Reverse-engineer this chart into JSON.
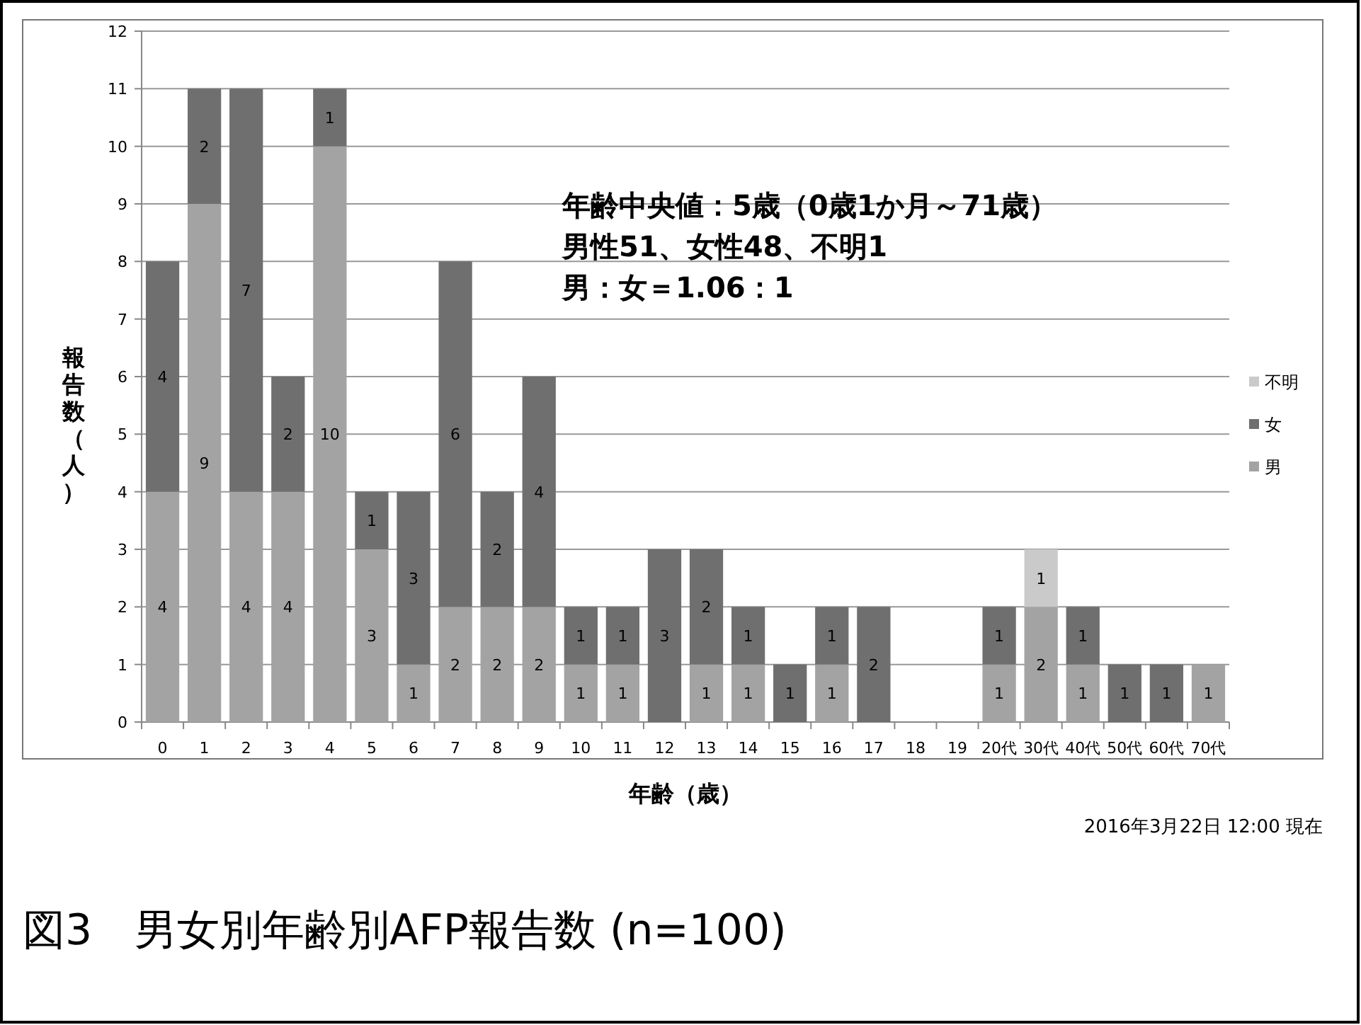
{
  "chart_data": {
    "type": "bar",
    "stacked": true,
    "title": "図3　男女別年齢別AFP報告数 (n=100)",
    "xlabel": "年齢（歳）",
    "ylabel": "報告数（人）",
    "categories": [
      "0",
      "1",
      "2",
      "3",
      "4",
      "5",
      "6",
      "7",
      "8",
      "9",
      "10",
      "11",
      "12",
      "13",
      "14",
      "15",
      "16",
      "17",
      "18",
      "19",
      "20代",
      "30代",
      "40代",
      "50代",
      "60代",
      "70代"
    ],
    "series": [
      {
        "name": "男",
        "color": "#a3a3a3",
        "values": [
          4,
          9,
          4,
          4,
          10,
          3,
          1,
          2,
          2,
          2,
          1,
          1,
          null,
          1,
          1,
          null,
          1,
          null,
          null,
          null,
          1,
          2,
          1,
          null,
          null,
          1
        ]
      },
      {
        "name": "女",
        "color": "#6f6f6f",
        "values": [
          4,
          2,
          7,
          2,
          1,
          1,
          3,
          6,
          2,
          4,
          1,
          1,
          3,
          2,
          1,
          1,
          1,
          2,
          null,
          null,
          1,
          null,
          1,
          1,
          1,
          null
        ]
      },
      {
        "name": "不明",
        "color": "#cacaca",
        "values": [
          null,
          null,
          null,
          null,
          null,
          null,
          null,
          null,
          null,
          null,
          null,
          null,
          null,
          null,
          null,
          null,
          null,
          null,
          null,
          null,
          null,
          1,
          null,
          null,
          null,
          null
        ]
      }
    ],
    "ylim": [
      0,
      12
    ],
    "yticks": [
      0,
      1,
      2,
      3,
      4,
      5,
      6,
      7,
      8,
      9,
      10,
      11,
      12
    ],
    "grid": "y",
    "legend": "right",
    "data_labels": true,
    "annotations": [
      "年齢中央値：5歳（0歳1か月～71歳）",
      "男性51、女性48、不明1",
      "男：女＝1.06：1",
      "2016年3月22日 12:00 現在"
    ]
  }
}
